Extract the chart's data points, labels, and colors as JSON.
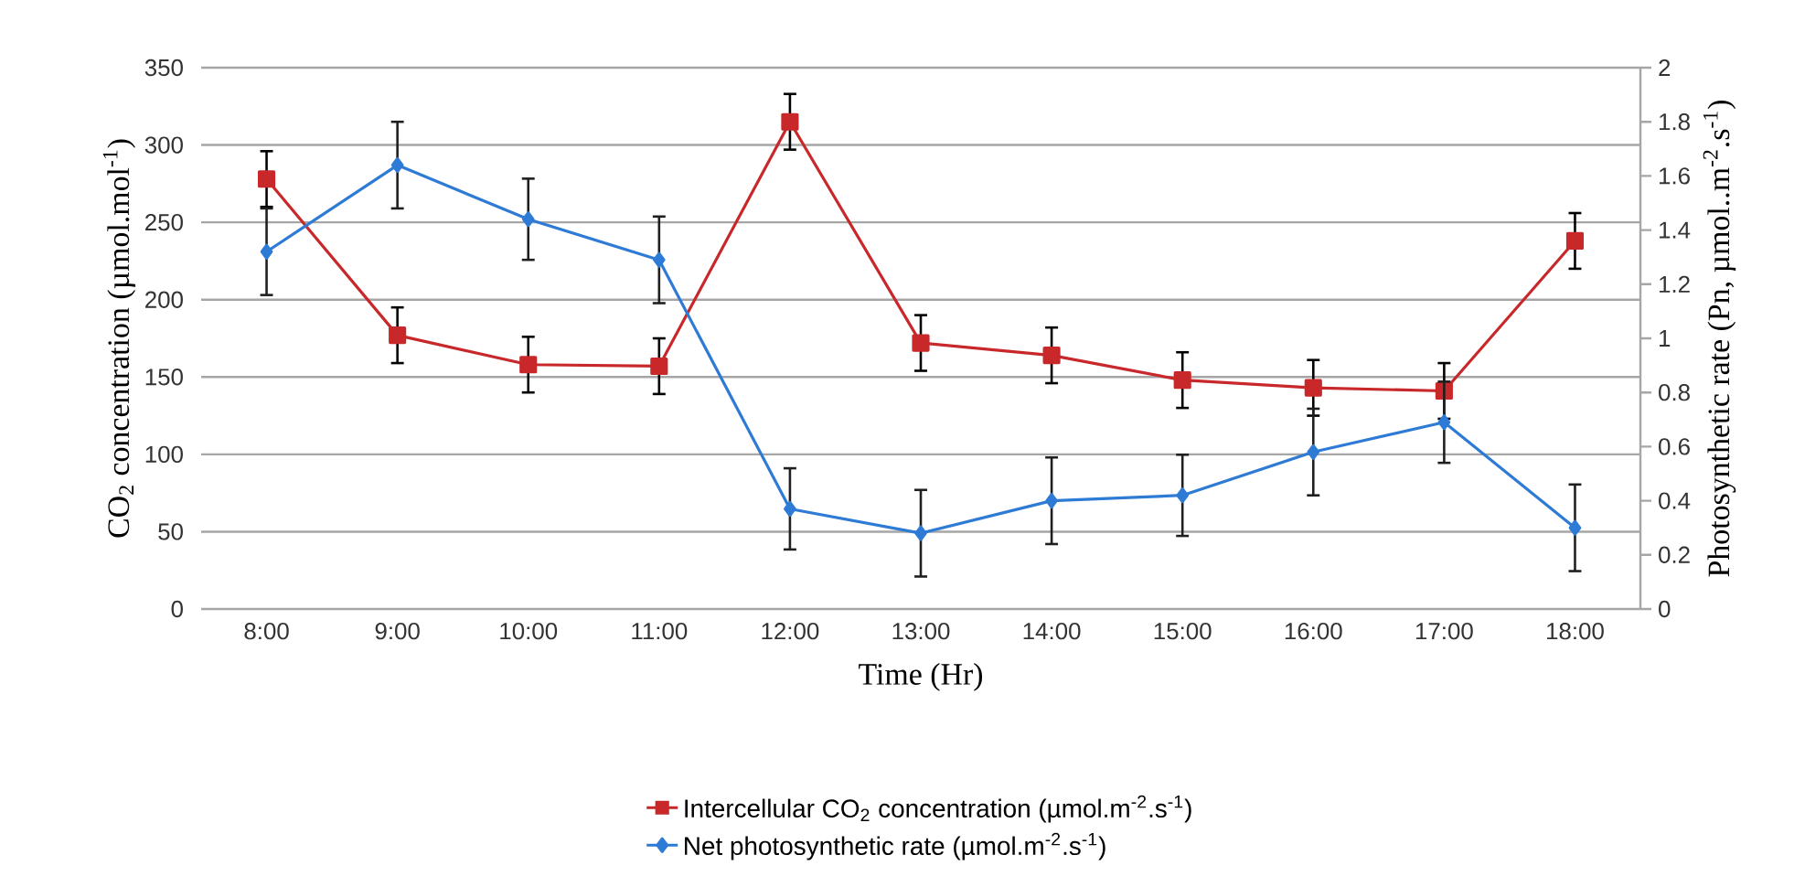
{
  "chart_data": {
    "type": "line",
    "xlabel": "Time (Hr)",
    "ylabel": "CO$_{2}$ concentration (µmol.mol$^{-1}$)",
    "y2label": "Photosynthetic rate (Pn, µmol..m$^{-2}$.s$^{-1}$)",
    "categories": [
      "8:00",
      "9:00",
      "10:00",
      "11:00",
      "12:00",
      "13:00",
      "14:00",
      "15:00",
      "16:00",
      "17:00",
      "18:00"
    ],
    "series": [
      {
        "name": "Intercellular CO$_{2}$ concentration (µmol.m$^{-2}$.s$^{-1}$)",
        "color": "#c8282a",
        "marker": "square",
        "values": [
          278,
          177,
          158,
          157,
          315,
          172,
          164,
          148,
          143,
          141,
          238
        ],
        "errors": [
          18,
          18,
          18,
          18,
          18,
          18,
          18,
          18,
          18,
          18,
          18
        ]
      },
      {
        "name": "Net photosynthetic rate (µmol.m$^{-2}$.s$^{-1}$)",
        "color": "#2e7bd6",
        "marker": "diamond",
        "axis": "y2",
        "values": [
          1.32,
          1.64,
          1.44,
          1.29,
          0.37,
          0.28,
          0.4,
          0.42,
          0.58,
          0.69,
          0.3
        ],
        "errors": [
          0.16,
          0.16,
          0.15,
          0.16,
          0.15,
          0.16,
          0.16,
          0.15,
          0.16,
          0.15,
          0.16
        ]
      }
    ],
    "ylim": [
      0,
      350
    ],
    "yticks": [
      0,
      50,
      100,
      150,
      200,
      250,
      300,
      350
    ],
    "y2lim": [
      0,
      2
    ],
    "y2ticks": [
      0,
      0.2,
      0.4,
      0.6,
      0.8,
      1,
      1.2,
      1.4,
      1.6,
      1.8,
      2
    ],
    "grid": "y",
    "legend": "bottom"
  }
}
